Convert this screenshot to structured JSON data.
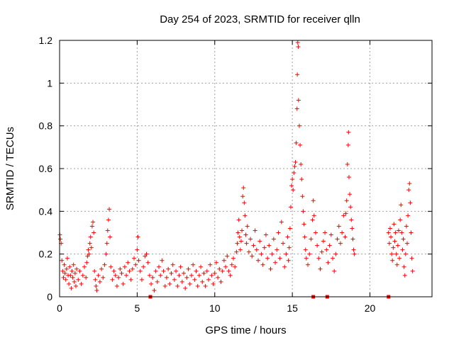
{
  "chart_data": {
    "type": "scatter",
    "title": "Day 254 of 2023, SRMTID for receiver qlln",
    "xlabel": "GPS time / hours",
    "ylabel": "SRMTID / TECUs",
    "xlim": [
      0,
      24
    ],
    "ylim": [
      0,
      1.2
    ],
    "xticks": [
      0,
      5,
      10,
      15,
      20
    ],
    "xtick_labels": [
      "0",
      "5",
      "10",
      "15",
      "20"
    ],
    "yticks": [
      0,
      0.2,
      0.4,
      0.6,
      0.8,
      1.0,
      1.2
    ],
    "ytick_labels": [
      "0",
      "0.2",
      "0.4",
      "0.6",
      "0.8",
      "1",
      "1.2"
    ],
    "grid": true,
    "marker": "+",
    "color": "#ff0000",
    "series": [
      {
        "name": "SRMTID",
        "points": [
          [
            0.02,
            0.29
          ],
          [
            0.05,
            0.27
          ],
          [
            0.1,
            0.25
          ],
          [
            0.15,
            0.17
          ],
          [
            0.2,
            0.12
          ],
          [
            0.25,
            0.09
          ],
          [
            0.3,
            0.15
          ],
          [
            0.35,
            0.11
          ],
          [
            0.4,
            0.08
          ],
          [
            0.45,
            0.13
          ],
          [
            0.5,
            0.18
          ],
          [
            0.55,
            0.1
          ],
          [
            0.6,
            0.06
          ],
          [
            0.65,
            0.14
          ],
          [
            0.7,
            0.1
          ],
          [
            0.75,
            0.04
          ],
          [
            0.8,
            0.12
          ],
          [
            0.85,
            0.09
          ],
          [
            0.9,
            0.15
          ],
          [
            0.95,
            0.07
          ],
          [
            1.0,
            0.11
          ],
          [
            1.05,
            0.05
          ],
          [
            1.1,
            0.13
          ],
          [
            1.2,
            0.08
          ],
          [
            1.3,
            0.12
          ],
          [
            1.4,
            0.06
          ],
          [
            1.5,
            0.1
          ],
          [
            1.6,
            0.14
          ],
          [
            1.7,
            0.09
          ],
          [
            1.75,
            0.16
          ],
          [
            1.8,
            0.19
          ],
          [
            1.85,
            0.22
          ],
          [
            1.9,
            0.2
          ],
          [
            1.95,
            0.25
          ],
          [
            2.0,
            0.28
          ],
          [
            2.05,
            0.23
          ],
          [
            2.1,
            0.33
          ],
          [
            2.15,
            0.35
          ],
          [
            2.2,
            0.3
          ],
          [
            2.25,
            0.12
          ],
          [
            2.3,
            0.08
          ],
          [
            2.35,
            0.05
          ],
          [
            2.4,
            0.03
          ],
          [
            2.5,
            0.1
          ],
          [
            2.6,
            0.07
          ],
          [
            2.7,
            0.13
          ],
          [
            2.8,
            0.09
          ],
          [
            2.9,
            0.15
          ],
          [
            3.0,
            0.2
          ],
          [
            3.05,
            0.25
          ],
          [
            3.1,
            0.31
          ],
          [
            3.15,
            0.36
          ],
          [
            3.2,
            0.41
          ],
          [
            3.25,
            0.28
          ],
          [
            3.3,
            0.14
          ],
          [
            3.4,
            0.08
          ],
          [
            3.5,
            0.12
          ],
          [
            3.6,
            0.1
          ],
          [
            3.7,
            0.05
          ],
          [
            3.8,
            0.09
          ],
          [
            3.9,
            0.13
          ],
          [
            4.0,
            0.11
          ],
          [
            4.1,
            0.06
          ],
          [
            4.2,
            0.14
          ],
          [
            4.3,
            0.1
          ],
          [
            4.4,
            0.16
          ],
          [
            4.5,
            0.12
          ],
          [
            4.6,
            0.08
          ],
          [
            4.7,
            0.13
          ],
          [
            4.8,
            0.18
          ],
          [
            4.9,
            0.15
          ],
          [
            5.0,
            0.22
          ],
          [
            5.05,
            0.28
          ],
          [
            5.1,
            0.17
          ],
          [
            5.2,
            0.12
          ],
          [
            5.3,
            0.08
          ],
          [
            5.4,
            0.14
          ],
          [
            5.5,
            0.19
          ],
          [
            5.6,
            0.2
          ],
          [
            5.7,
            0.16
          ],
          [
            5.8,
            0.1
          ],
          [
            5.9,
            0.06
          ],
          [
            6.0,
            0.09
          ],
          [
            6.1,
            0.03
          ],
          [
            6.2,
            0.12
          ],
          [
            6.3,
            0.07
          ],
          [
            6.4,
            0.14
          ],
          [
            6.5,
            0.1
          ],
          [
            6.6,
            0.17
          ],
          [
            6.7,
            0.12
          ],
          [
            6.8,
            0.05
          ],
          [
            6.9,
            0.09
          ],
          [
            7.0,
            0.13
          ],
          [
            7.1,
            0.06
          ],
          [
            7.2,
            0.11
          ],
          [
            7.3,
            0.15
          ],
          [
            7.4,
            0.08
          ],
          [
            7.5,
            0.12
          ],
          [
            7.6,
            0.05
          ],
          [
            7.7,
            0.1
          ],
          [
            7.8,
            0.14
          ],
          [
            7.9,
            0.07
          ],
          [
            8.0,
            0.11
          ],
          [
            8.1,
            0.04
          ],
          [
            8.2,
            0.09
          ],
          [
            8.3,
            0.13
          ],
          [
            8.4,
            0.06
          ],
          [
            8.5,
            0.1
          ],
          [
            8.6,
            0.15
          ],
          [
            8.7,
            0.08
          ],
          [
            8.8,
            0.12
          ],
          [
            8.9,
            0.05
          ],
          [
            9.0,
            0.1
          ],
          [
            9.1,
            0.14
          ],
          [
            9.2,
            0.07
          ],
          [
            9.3,
            0.11
          ],
          [
            9.4,
            0.05
          ],
          [
            9.5,
            0.12
          ],
          [
            9.6,
            0.08
          ],
          [
            9.7,
            0.15
          ],
          [
            9.8,
            0.1
          ],
          [
            9.9,
            0.06
          ],
          [
            10.0,
            0.11
          ],
          [
            10.1,
            0.16
          ],
          [
            10.2,
            0.09
          ],
          [
            10.3,
            0.13
          ],
          [
            10.4,
            0.07
          ],
          [
            10.5,
            0.12
          ],
          [
            10.6,
            0.17
          ],
          [
            10.7,
            0.14
          ],
          [
            10.8,
            0.19
          ],
          [
            10.9,
            0.12
          ],
          [
            11.0,
            0.1
          ],
          [
            11.1,
            0.15
          ],
          [
            11.2,
            0.18
          ],
          [
            11.3,
            0.14
          ],
          [
            11.4,
            0.21
          ],
          [
            11.45,
            0.25
          ],
          [
            11.5,
            0.3
          ],
          [
            11.55,
            0.36
          ],
          [
            11.6,
            0.28
          ],
          [
            11.65,
            0.22
          ],
          [
            11.7,
            0.26
          ],
          [
            11.75,
            0.31
          ],
          [
            11.8,
            0.47
          ],
          [
            11.85,
            0.51
          ],
          [
            11.9,
            0.44
          ],
          [
            11.95,
            0.38
          ],
          [
            12.0,
            0.29
          ],
          [
            12.05,
            0.25
          ],
          [
            12.1,
            0.33
          ],
          [
            12.2,
            0.21
          ],
          [
            12.3,
            0.27
          ],
          [
            12.4,
            0.19
          ],
          [
            12.5,
            0.24
          ],
          [
            12.6,
            0.31
          ],
          [
            12.7,
            0.22
          ],
          [
            12.8,
            0.17
          ],
          [
            12.9,
            0.26
          ],
          [
            13.0,
            0.2
          ],
          [
            13.1,
            0.15
          ],
          [
            13.2,
            0.23
          ],
          [
            13.3,
            0.29
          ],
          [
            13.4,
            0.18
          ],
          [
            13.5,
            0.24
          ],
          [
            13.6,
            0.13
          ],
          [
            13.7,
            0.2
          ],
          [
            13.8,
            0.27
          ],
          [
            13.9,
            0.16
          ],
          [
            14.0,
            0.22
          ],
          [
            14.1,
            0.3
          ],
          [
            14.2,
            0.18
          ],
          [
            14.3,
            0.35
          ],
          [
            14.4,
            0.25
          ],
          [
            14.5,
            0.14
          ],
          [
            14.6,
            0.2
          ],
          [
            14.7,
            0.28
          ],
          [
            14.75,
            0.17
          ],
          [
            14.8,
            0.23
          ],
          [
            14.85,
            0.32
          ],
          [
            14.9,
            0.42
          ],
          [
            14.95,
            0.52
          ],
          [
            15.0,
            0.55
          ],
          [
            15.05,
            0.5
          ],
          [
            15.1,
            0.58
          ],
          [
            15.15,
            0.61
          ],
          [
            15.2,
            0.63
          ],
          [
            15.25,
            0.72
          ],
          [
            15.3,
            0.88
          ],
          [
            15.32,
            1.04
          ],
          [
            15.35,
            1.19
          ],
          [
            15.38,
            1.17
          ],
          [
            15.4,
            0.92
          ],
          [
            15.45,
            0.8
          ],
          [
            15.5,
            0.71
          ],
          [
            15.55,
            0.62
          ],
          [
            15.6,
            0.55
          ],
          [
            15.65,
            0.47
          ],
          [
            15.7,
            0.4
          ],
          [
            15.75,
            0.34
          ],
          [
            15.8,
            0.28
          ],
          [
            15.85,
            0.22
          ],
          [
            15.9,
            0.18
          ],
          [
            16.0,
            0.15
          ],
          [
            16.1,
            0.2
          ],
          [
            16.2,
            0.27
          ],
          [
            16.3,
            0.36
          ],
          [
            16.35,
            0.45
          ],
          [
            16.4,
            0.38
          ],
          [
            16.5,
            0.3
          ],
          [
            16.6,
            0.24
          ],
          [
            16.7,
            0.18
          ],
          [
            16.8,
            0.13
          ],
          [
            16.9,
            0.21
          ],
          [
            17.0,
            0.26
          ],
          [
            17.1,
            0.3
          ],
          [
            17.2,
            0.22
          ],
          [
            17.3,
            0.16
          ],
          [
            17.4,
            0.24
          ],
          [
            17.5,
            0.29
          ],
          [
            17.6,
            0.18
          ],
          [
            17.7,
            0.12
          ],
          [
            17.8,
            0.2
          ],
          [
            17.9,
            0.27
          ],
          [
            18.0,
            0.33
          ],
          [
            18.1,
            0.25
          ],
          [
            18.2,
            0.3
          ],
          [
            18.3,
            0.38
          ],
          [
            18.4,
            0.28
          ],
          [
            18.45,
            0.39
          ],
          [
            18.5,
            0.45
          ],
          [
            18.55,
            0.62
          ],
          [
            18.6,
            0.71
          ],
          [
            18.62,
            0.77
          ],
          [
            18.65,
            0.56
          ],
          [
            18.7,
            0.48
          ],
          [
            18.75,
            0.42
          ],
          [
            18.8,
            0.36
          ],
          [
            18.85,
            0.32
          ],
          [
            18.9,
            0.27
          ],
          [
            18.95,
            0.22
          ],
          [
            19.0,
            0.2
          ],
          [
            21.2,
            0.3
          ],
          [
            21.25,
            0.25
          ],
          [
            21.3,
            0.32
          ],
          [
            21.35,
            0.28
          ],
          [
            21.4,
            0.2
          ],
          [
            21.45,
            0.17
          ],
          [
            21.5,
            0.23
          ],
          [
            21.55,
            0.34
          ],
          [
            21.6,
            0.26
          ],
          [
            21.65,
            0.3
          ],
          [
            21.7,
            0.2
          ],
          [
            21.75,
            0.15
          ],
          [
            21.8,
            0.24
          ],
          [
            21.85,
            0.31
          ],
          [
            21.9,
            0.18
          ],
          [
            21.95,
            0.36
          ],
          [
            22.0,
            0.43
          ],
          [
            22.05,
            0.3
          ],
          [
            22.1,
            0.22
          ],
          [
            22.15,
            0.27
          ],
          [
            22.2,
            0.14
          ],
          [
            22.25,
            0.1
          ],
          [
            22.3,
            0.2
          ],
          [
            22.35,
            0.33
          ],
          [
            22.4,
            0.25
          ],
          [
            22.45,
            0.38
          ],
          [
            22.5,
            0.5
          ],
          [
            22.55,
            0.53
          ],
          [
            22.6,
            0.44
          ],
          [
            22.65,
            0.3
          ],
          [
            22.7,
            0.18
          ],
          [
            22.75,
            0.12
          ]
        ]
      }
    ],
    "baseline_markers_x": [
      5.85,
      16.35,
      17.25,
      21.2
    ]
  }
}
